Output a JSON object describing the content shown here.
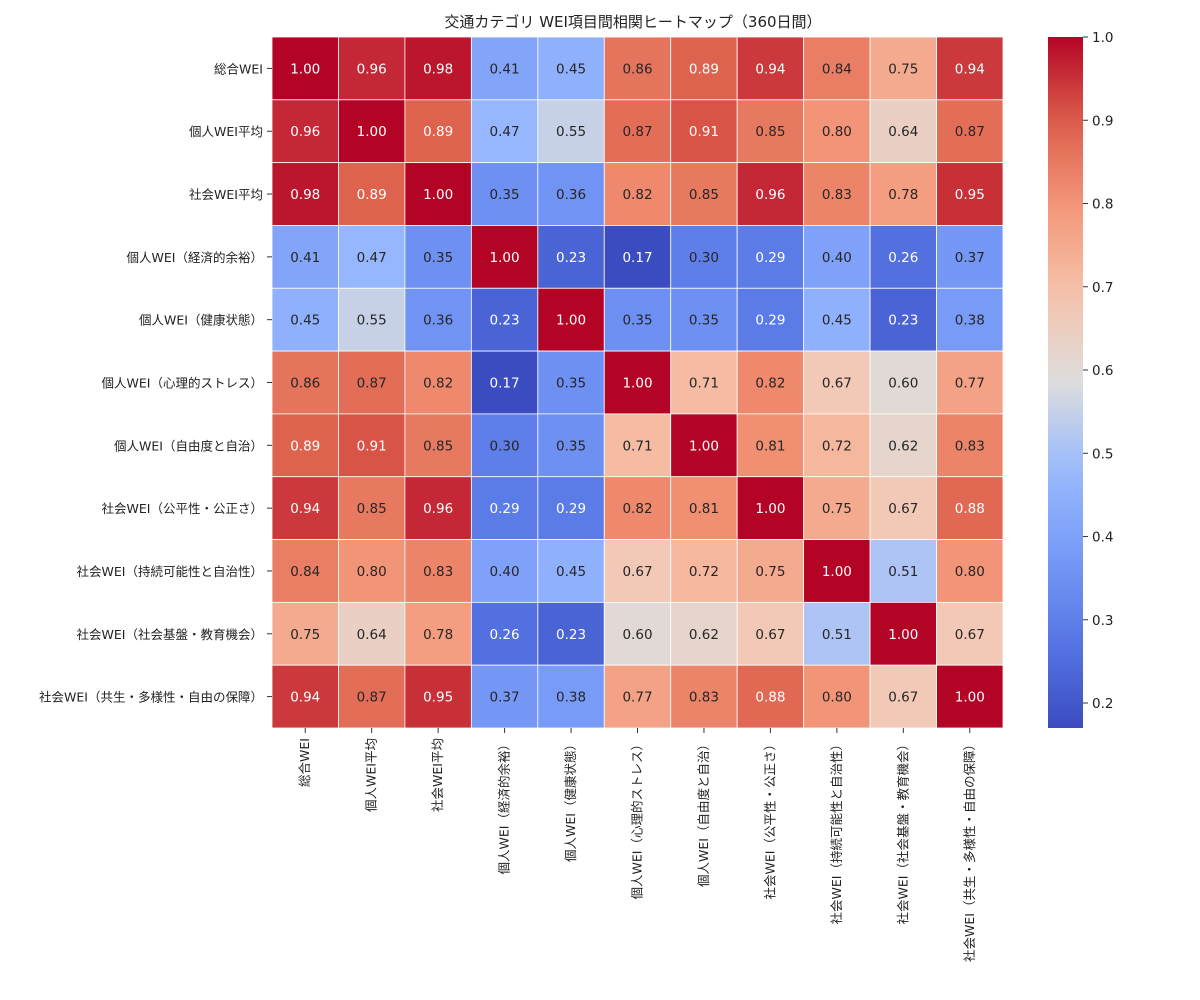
{
  "chart_data": {
    "type": "heatmap",
    "title": "交通カテゴリ WEI項目間相関ヒートマップ（360日間）",
    "labels": [
      "総合WEI",
      "個人WEI平均",
      "社会WEI平均",
      "個人WEI（経済的余裕）",
      "個人WEI（健康状態）",
      "個人WEI（心理的ストレス）",
      "個人WEI（自由度と自治）",
      "社会WEI（公平性・公正さ）",
      "社会WEI（持続可能性と自治性）",
      "社会WEI（社会基盤・教育機会）",
      "社会WEI（共生・多様性・自由の保障）"
    ],
    "matrix": [
      [
        1.0,
        0.96,
        0.98,
        0.41,
        0.45,
        0.86,
        0.89,
        0.94,
        0.84,
        0.75,
        0.94
      ],
      [
        0.96,
        1.0,
        0.89,
        0.47,
        0.55,
        0.87,
        0.91,
        0.85,
        0.8,
        0.64,
        0.87
      ],
      [
        0.98,
        0.89,
        1.0,
        0.35,
        0.36,
        0.82,
        0.85,
        0.96,
        0.83,
        0.78,
        0.95
      ],
      [
        0.41,
        0.47,
        0.35,
        1.0,
        0.23,
        0.17,
        0.3,
        0.29,
        0.4,
        0.26,
        0.37
      ],
      [
        0.45,
        0.55,
        0.36,
        0.23,
        1.0,
        0.35,
        0.35,
        0.29,
        0.45,
        0.23,
        0.38
      ],
      [
        0.86,
        0.87,
        0.82,
        0.17,
        0.35,
        1.0,
        0.71,
        0.82,
        0.67,
        0.6,
        0.77
      ],
      [
        0.89,
        0.91,
        0.85,
        0.3,
        0.35,
        0.71,
        1.0,
        0.81,
        0.72,
        0.62,
        0.83
      ],
      [
        0.94,
        0.85,
        0.96,
        0.29,
        0.29,
        0.82,
        0.81,
        1.0,
        0.75,
        0.67,
        0.88
      ],
      [
        0.84,
        0.8,
        0.83,
        0.4,
        0.45,
        0.67,
        0.72,
        0.75,
        1.0,
        0.51,
        0.8
      ],
      [
        0.75,
        0.64,
        0.78,
        0.26,
        0.23,
        0.6,
        0.62,
        0.67,
        0.51,
        1.0,
        0.67
      ],
      [
        0.94,
        0.87,
        0.95,
        0.37,
        0.38,
        0.77,
        0.83,
        0.88,
        0.8,
        0.67,
        1.0
      ]
    ],
    "colormap": "coolwarm",
    "vmin": 0.17,
    "vmax": 1.0,
    "colorbar_ticks": [
      "0.2",
      "0.3",
      "0.4",
      "0.5",
      "0.6",
      "0.7",
      "0.8",
      "0.9",
      "1.0"
    ],
    "colorbar_tick_values": [
      0.2,
      0.3,
      0.4,
      0.5,
      0.6,
      0.7,
      0.8,
      0.9,
      1.0
    ],
    "annotation_format": "2f"
  }
}
